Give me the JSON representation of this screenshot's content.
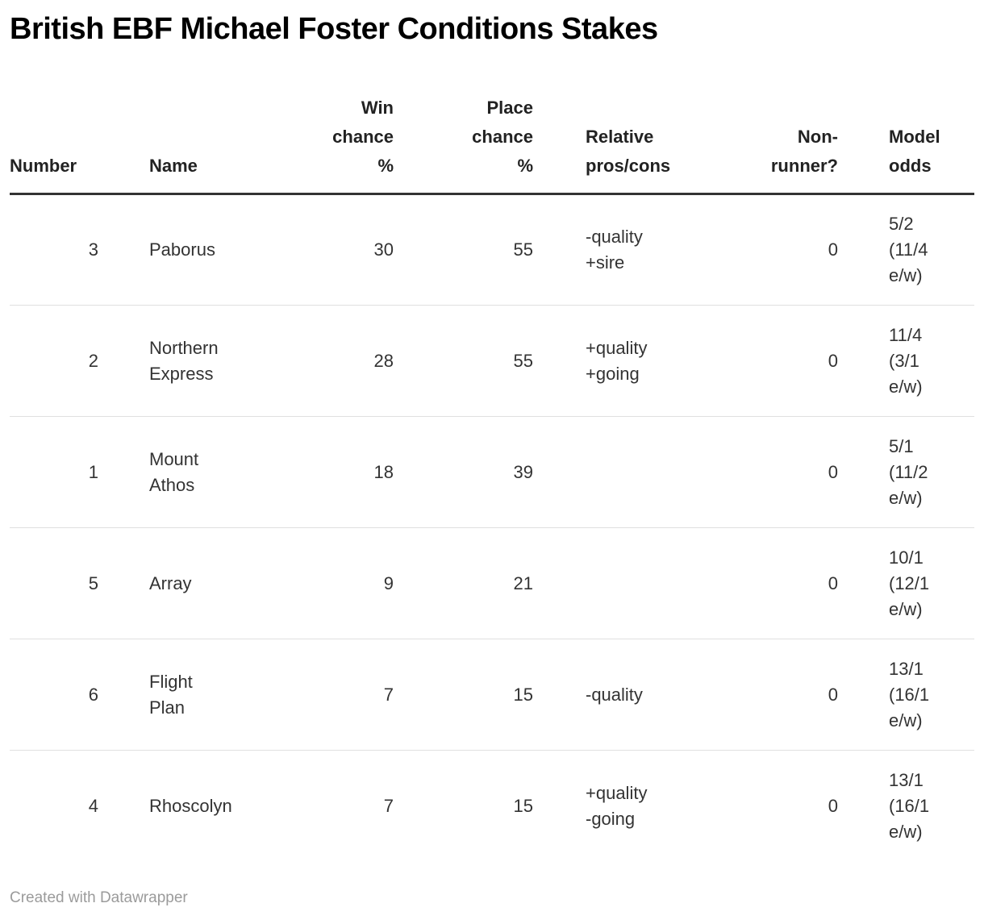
{
  "title": "British EBF Michael Foster Conditions Stakes",
  "attribution": "Created with Datawrapper",
  "colors": {
    "background": "#ffffff",
    "title_text": "#000000",
    "header_text": "#222222",
    "body_text": "#333333",
    "header_rule": "#333333",
    "row_divider": "#e0e0e0",
    "attribution_text": "#9b9b9b"
  },
  "chart_data": {
    "type": "table",
    "title": "British EBF Michael Foster Conditions Stakes",
    "columns": [
      "Number",
      "Name",
      "Win chance %",
      "Place chance %",
      "Relative pros/cons",
      "Non-runner?",
      "Model odds"
    ],
    "column_labels": [
      "Number",
      "Name",
      "Win\nchance\n%",
      "Place\nchance\n%",
      "Relative\npros/cons",
      "Non-\nrunner?",
      "Model\nodds"
    ],
    "rows": [
      {
        "number": "3",
        "name": "Paborus",
        "win_chance": "30",
        "place_chance": "55",
        "pros_cons": "-quality\n+sire",
        "non_runner": "0",
        "model_odds": "5/2\n(11/4\ne/w)"
      },
      {
        "number": "2",
        "name": "Northern\nExpress",
        "win_chance": "28",
        "place_chance": "55",
        "pros_cons": "+quality\n+going",
        "non_runner": "0",
        "model_odds": "11/4\n(3/1\ne/w)"
      },
      {
        "number": "1",
        "name": "Mount\nAthos",
        "win_chance": "18",
        "place_chance": "39",
        "pros_cons": "",
        "non_runner": "0",
        "model_odds": "5/1\n(11/2\ne/w)"
      },
      {
        "number": "5",
        "name": "Array",
        "win_chance": "9",
        "place_chance": "21",
        "pros_cons": "",
        "non_runner": "0",
        "model_odds": "10/1\n(12/1\ne/w)"
      },
      {
        "number": "6",
        "name": "Flight\nPlan",
        "win_chance": "7",
        "place_chance": "15",
        "pros_cons": "-quality",
        "non_runner": "0",
        "model_odds": "13/1\n(16/1\ne/w)"
      },
      {
        "number": "4",
        "name": "Rhoscolyn",
        "win_chance": "7",
        "place_chance": "15",
        "pros_cons": "+quality\n-going",
        "non_runner": "0",
        "model_odds": "13/1\n(16/1\ne/w)"
      }
    ]
  }
}
